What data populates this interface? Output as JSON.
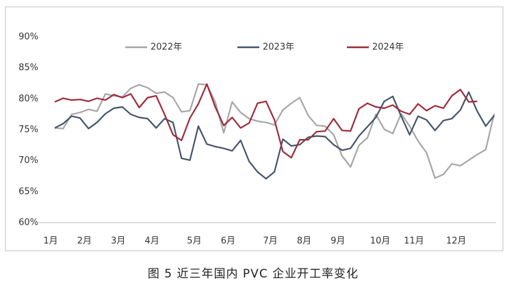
{
  "chart_data": {
    "type": "line",
    "caption": "图 5  近三年国内 PVC 企业开工率变化",
    "categories": [
      "1月",
      null,
      null,
      null,
      "2月",
      null,
      null,
      null,
      "3月",
      null,
      null,
      null,
      "4月",
      null,
      null,
      null,
      null,
      "5月",
      null,
      null,
      null,
      "6月",
      null,
      null,
      null,
      null,
      "7月",
      null,
      null,
      null,
      "8月",
      null,
      null,
      null,
      "9月",
      null,
      null,
      null,
      null,
      "10月",
      null,
      null,
      null,
      "11月",
      null,
      null,
      null,
      null,
      "12月",
      null,
      null,
      null,
      null
    ],
    "ylim": [
      60,
      90
    ],
    "yticks": [
      {
        "value": 60,
        "label": "60%"
      },
      {
        "value": 65,
        "label": "65%"
      },
      {
        "value": 70,
        "label": "70%"
      },
      {
        "value": 75,
        "label": "75%"
      },
      {
        "value": 80,
        "label": "80%"
      },
      {
        "value": 85,
        "label": "85%"
      },
      {
        "value": 90,
        "label": "90%"
      }
    ],
    "grid": false,
    "legend": "top",
    "series": [
      {
        "name": "2022年",
        "color": "#a6a6a6",
        "values": [
          75.3,
          75.2,
          77.5,
          77.8,
          78.3,
          78.0,
          80.8,
          80.5,
          80.3,
          81.7,
          82.3,
          81.8,
          80.9,
          81.1,
          80.2,
          77.9,
          78.1,
          82.4,
          82.3,
          79.5,
          74.5,
          79.5,
          77.8,
          76.8,
          76.4,
          76.2,
          75.8,
          78.2,
          79.3,
          80.2,
          77.3,
          75.7,
          75.6,
          74.2,
          70.8,
          69.0,
          72.5,
          73.7,
          77.5,
          75.1,
          74.4,
          77.6,
          75.6,
          73.2,
          71.3,
          67.2,
          67.8,
          69.5,
          69.2,
          70.1,
          71.0,
          71.8,
          77.6
        ]
      },
      {
        "name": "2023年",
        "color": "#44546a",
        "values": [
          75.3,
          76.0,
          77.2,
          76.9,
          75.2,
          76.2,
          77.6,
          78.5,
          78.7,
          77.5,
          77.0,
          76.8,
          75.3,
          76.8,
          76.2,
          70.4,
          70.1,
          75.6,
          72.7,
          72.3,
          72.0,
          71.6,
          73.3,
          69.9,
          68.2,
          67.1,
          68.2,
          73.5,
          72.4,
          72.6,
          73.8,
          74.0,
          73.9,
          72.6,
          71.7,
          72.0,
          74.0,
          75.5,
          77.0,
          79.6,
          80.4,
          77.2,
          74.2,
          77.2,
          76.6,
          74.9,
          76.5,
          76.8,
          78.2,
          81.1,
          78.0,
          75.6,
          77.3
        ]
      },
      {
        "name": "2024年",
        "color": "#9e2a3a",
        "values": [
          79.5,
          80.1,
          79.8,
          79.9,
          79.6,
          80.1,
          79.8,
          80.7,
          80.2,
          80.8,
          78.6,
          80.2,
          80.5,
          77.5,
          74.2,
          73.3,
          76.9,
          79.2,
          82.4,
          78.7,
          75.7,
          77.0,
          75.3,
          76.1,
          79.3,
          79.6,
          76.6,
          71.5,
          70.5,
          73.4,
          73.4,
          74.7,
          74.8,
          76.8,
          74.9,
          74.8,
          78.4,
          79.3,
          78.7,
          78.5,
          79.0,
          78.0,
          77.5,
          79.2,
          78.1,
          78.9,
          78.5,
          80.5,
          81.5,
          79.5,
          79.6,
          null,
          null
        ]
      }
    ]
  }
}
